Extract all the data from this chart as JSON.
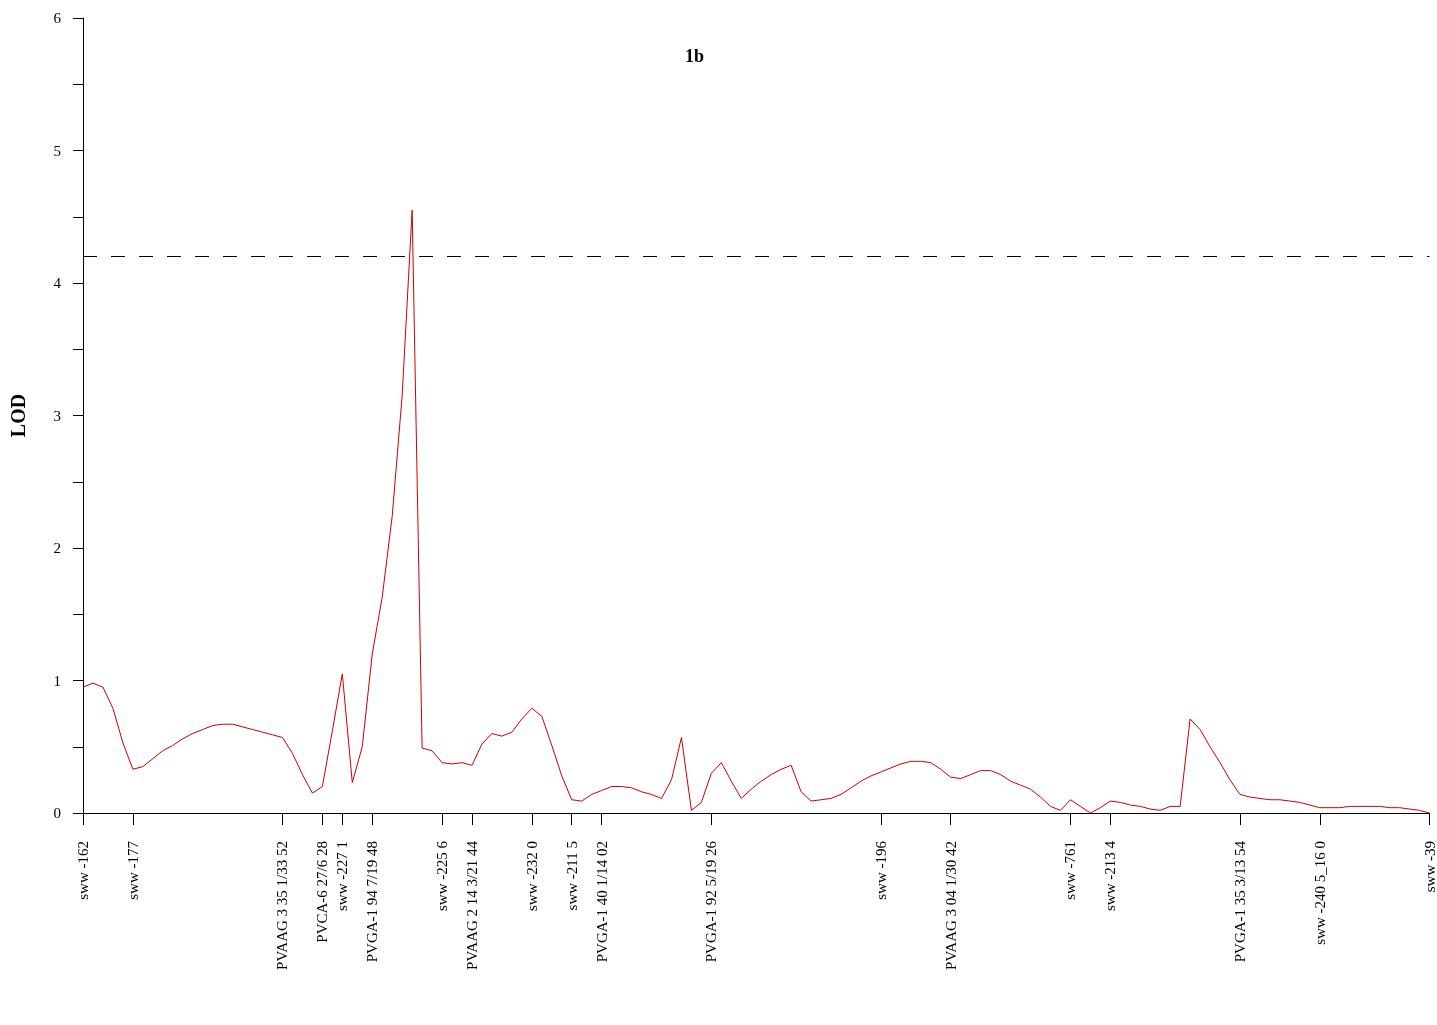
{
  "chart_data": {
    "type": "line",
    "title": "1b",
    "ylabel": "LOD",
    "categories": [
      "sww -162",
      null,
      null,
      null,
      null,
      "sww -177",
      null,
      null,
      null,
      null,
      null,
      null,
      null,
      null,
      null,
      null,
      null,
      null,
      null,
      null,
      "PVAAG 3 35 1/33 52",
      null,
      null,
      null,
      "PVCA-6 27/6 28",
      null,
      "sww -227 1",
      null,
      null,
      "PVGA-1 94 7/19 48",
      null,
      null,
      null,
      null,
      null,
      null,
      "sww -225 6",
      null,
      null,
      "PVAAG 2 14 3/21 44",
      null,
      null,
      null,
      null,
      null,
      "sww -232 0",
      null,
      null,
      null,
      "sww -211 5",
      null,
      null,
      "PVGA-1 40 1/14 02",
      null,
      null,
      null,
      null,
      null,
      null,
      null,
      null,
      null,
      null,
      "PVGA-1 92 5/19 26",
      null,
      null,
      null,
      null,
      null,
      null,
      null,
      null,
      null,
      null,
      null,
      null,
      null,
      null,
      null,
      null,
      "sww -196",
      null,
      null,
      null,
      null,
      null,
      null,
      "PVAAG 3 04 1/30 42",
      null,
      null,
      null,
      null,
      null,
      null,
      null,
      null,
      null,
      null,
      null,
      "sww -761",
      null,
      null,
      null,
      "sww -213 4",
      null,
      null,
      null,
      null,
      null,
      null,
      null,
      null,
      null,
      null,
      null,
      null,
      "PVGA-1 35 3/13 54",
      null,
      null,
      null,
      null,
      null,
      null,
      null,
      "sww -240 5_16 0",
      null,
      null,
      null,
      null,
      null,
      null,
      null,
      null,
      null,
      null,
      "sww -39"
    ],
    "series": [
      {
        "color": "#cc0000",
        "values": [
          0.95,
          0.98,
          0.95,
          0.79,
          0.53,
          0.33,
          0.35,
          0.41,
          0.47,
          0.51,
          0.56,
          0.6,
          0.63,
          0.66,
          0.67,
          0.67,
          0.65,
          0.63,
          0.61,
          0.59,
          0.57,
          0.45,
          0.29,
          0.15,
          0.2,
          0.62,
          1.05,
          0.23,
          0.5,
          1.2,
          1.63,
          2.24,
          3.15,
          4.55,
          0.49,
          0.47,
          0.38,
          0.37,
          0.38,
          0.36,
          0.52,
          0.6,
          0.58,
          0.61,
          0.71,
          0.79,
          0.73,
          0.51,
          0.28,
          0.1,
          0.09,
          0.14,
          0.17,
          0.2,
          0.2,
          0.19,
          0.16,
          0.14,
          0.11,
          0.25,
          0.57,
          0.02,
          0.08,
          0.3,
          0.38,
          0.24,
          0.11,
          0.18,
          0.24,
          0.29,
          0.33,
          0.36,
          0.16,
          0.09,
          0.1,
          0.11,
          0.14,
          0.19,
          0.24,
          0.28,
          0.31,
          0.34,
          0.37,
          0.39,
          0.39,
          0.38,
          0.33,
          0.27,
          0.26,
          0.29,
          0.32,
          0.32,
          0.29,
          0.24,
          0.21,
          0.18,
          0.12,
          0.05,
          0.02,
          0.1,
          0.05,
          0,
          0.04,
          0.09,
          0.08,
          0.06,
          0.05,
          0.03,
          0.02,
          0.05,
          0.05,
          0.71,
          0.63,
          0.5,
          0.38,
          0.25,
          0.14,
          0.12,
          0.11,
          0.1,
          0.1,
          0.09,
          0.08,
          0.06,
          0.04,
          0.04,
          0.04,
          0.05,
          0.05,
          0.05,
          0.05,
          0.04,
          0.04,
          0.03,
          0.02,
          0
        ]
      }
    ],
    "ylim": [
      0,
      6
    ],
    "yticks": [
      0,
      {
        "value": 0.5,
        "label": null
      },
      1,
      {
        "value": 1.5,
        "label": null
      },
      2,
      {
        "value": 2.5,
        "label": null
      },
      3,
      {
        "value": 3.5,
        "label": null
      },
      4,
      {
        "value": 4.5,
        "label": null
      },
      5,
      {
        "value": 5.5,
        "label": null
      },
      6
    ],
    "ref_lines": [
      {
        "axis": "y",
        "value": 4.2,
        "label": null,
        "color": "#000000",
        "line_style": "dashed"
      }
    ],
    "grid": false,
    "marker": "none",
    "line_style": "solid"
  }
}
